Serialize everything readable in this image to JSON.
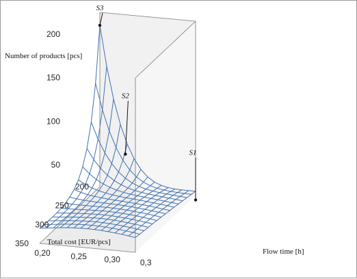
{
  "chart_data": {
    "type": "surface",
    "zlabel": "Number of products [pcs]",
    "xlabel": "Total cost [EUR/pcs]",
    "ylabel": "Flow time [h]",
    "zticks": [
      "200",
      "150",
      "100",
      "50"
    ],
    "xticks": [
      "200",
      "250",
      "300",
      "350"
    ],
    "yticks": [
      "0,20",
      "0,25",
      "0,30",
      "0,3"
    ],
    "zlim": [
      25,
      225
    ],
    "colors": {
      "mesh": "#3f70b0",
      "box": "#777777",
      "wall": "#f1f1f1",
      "floor": "#ececec"
    },
    "points": [
      {
        "label": "S3",
        "cost": 200,
        "time": 0.2,
        "count": 210
      },
      {
        "label": "S2",
        "cost": 200,
        "time": 0.24,
        "count": 65
      },
      {
        "label": "S1",
        "cost": 200,
        "time": 0.35,
        "count": 20
      }
    ]
  }
}
